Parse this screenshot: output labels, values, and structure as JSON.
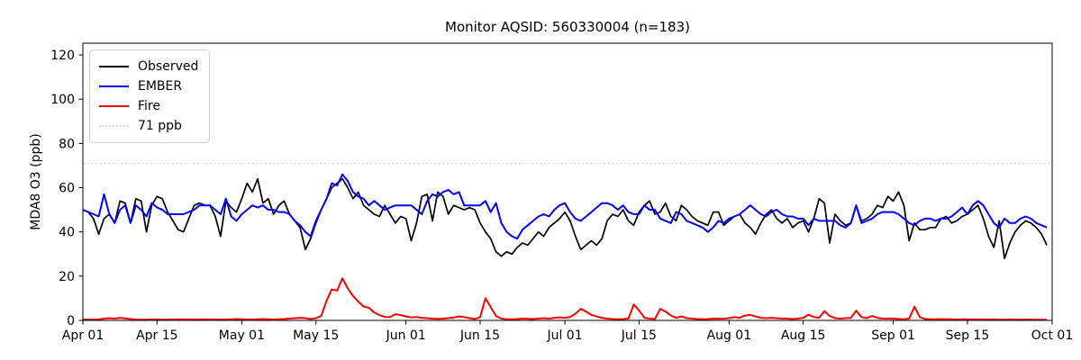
{
  "chart_data": {
    "type": "line",
    "title": "Monitor AQSID: 560330004 (n=183)",
    "xlabel": "",
    "ylabel": "MDA8 O3 (ppb)",
    "x_count": 183,
    "x_domain": 183,
    "ylim": [
      0,
      125.3
    ],
    "y_ticks": [
      0,
      20,
      40,
      60,
      80,
      100,
      120
    ],
    "x_ticks": [
      {
        "pos": 0,
        "label": "Apr 01"
      },
      {
        "pos": 14,
        "label": "Apr 15"
      },
      {
        "pos": 30,
        "label": "May 01"
      },
      {
        "pos": 44,
        "label": "May 15"
      },
      {
        "pos": 61,
        "label": "Jun 01"
      },
      {
        "pos": 75,
        "label": "Jun 15"
      },
      {
        "pos": 91,
        "label": "Jul 01"
      },
      {
        "pos": 105,
        "label": "Jul 15"
      },
      {
        "pos": 122,
        "label": "Aug 01"
      },
      {
        "pos": 136,
        "label": "Aug 15"
      },
      {
        "pos": 153,
        "label": "Sep 01"
      },
      {
        "pos": 167,
        "label": "Sep 15"
      },
      {
        "pos": 183,
        "label": "Oct 01"
      }
    ],
    "grid": false,
    "legend_position": "upper left",
    "threshold": {
      "value": 71,
      "label": "71 ppb",
      "color": "#d3d3d3",
      "style": "dotted"
    },
    "series": [
      {
        "name": "Observed",
        "color": "#000000",
        "width": 1.7,
        "values": [
          50,
          49,
          46,
          39,
          46,
          48,
          44,
          54,
          53,
          44,
          55,
          54,
          40,
          52,
          56,
          55,
          49,
          45,
          41,
          40,
          46,
          52,
          53,
          52,
          52,
          47,
          38,
          54,
          51,
          49,
          55,
          62,
          58,
          64,
          53,
          55,
          48,
          52,
          54,
          48,
          45,
          42,
          32,
          37,
          44,
          50,
          55,
          60,
          62,
          64,
          60,
          55,
          58,
          52,
          50,
          48,
          47,
          52,
          48,
          44,
          47,
          46,
          36,
          44,
          56,
          57,
          45,
          58,
          56,
          48,
          52,
          51,
          50,
          51,
          50,
          44,
          40,
          37,
          31,
          29,
          31,
          30,
          33,
          35,
          34,
          37,
          40,
          38,
          42,
          44,
          46,
          49,
          45,
          38,
          32,
          34,
          36,
          34,
          37,
          45,
          48,
          47,
          50,
          45,
          43,
          49,
          52,
          54,
          48,
          49,
          53,
          47,
          45,
          52,
          50,
          47,
          45,
          44,
          43,
          49,
          49,
          43,
          45,
          47,
          48,
          44,
          42,
          39,
          44,
          48,
          50,
          46,
          44,
          46,
          42,
          44,
          45,
          40,
          46,
          55,
          53,
          35,
          48,
          45,
          43,
          44,
          52,
          45,
          46,
          48,
          52,
          51,
          56,
          54,
          58,
          52,
          36,
          44,
          41,
          41,
          42,
          42,
          46,
          47,
          44,
          45,
          47,
          48,
          50,
          52,
          46,
          38,
          33,
          45,
          28,
          35,
          40,
          43,
          45,
          44,
          42,
          39,
          34
        ]
      },
      {
        "name": "EMBER",
        "color": "#0000ff",
        "width": 2.0,
        "values": [
          50,
          49,
          48,
          47,
          57,
          48,
          44,
          50,
          52,
          44,
          52,
          50,
          47,
          53,
          51,
          50,
          48,
          48,
          48,
          48,
          49,
          50,
          52,
          52,
          52,
          50,
          48,
          55,
          47,
          45,
          48,
          50,
          52,
          51,
          52,
          50,
          50,
          49,
          49,
          48,
          45,
          43,
          40,
          38,
          45,
          50,
          55,
          62,
          61,
          66,
          63,
          58,
          56,
          55,
          52,
          54,
          52,
          50,
          51,
          52,
          52,
          52,
          52,
          50,
          48,
          54,
          57,
          56,
          58,
          59,
          57,
          58,
          52,
          52,
          52,
          52,
          54,
          49,
          53,
          44,
          40,
          38,
          37,
          41,
          43,
          45,
          47,
          48,
          47,
          50,
          52,
          53,
          49,
          46,
          45,
          47,
          49,
          51,
          53,
          53,
          52,
          50,
          52,
          49,
          48,
          48,
          52,
          50,
          50,
          46,
          45,
          44,
          49,
          48,
          45,
          44,
          43,
          42,
          40,
          42,
          45,
          44,
          46,
          47,
          48,
          50,
          52,
          50,
          48,
          47,
          49,
          50,
          48,
          47,
          47,
          46,
          46,
          43,
          46,
          45,
          45,
          45,
          45,
          43,
          42,
          44,
          52,
          44,
          45,
          46,
          48,
          49,
          49,
          49,
          48,
          46,
          44,
          43,
          45,
          46,
          46,
          45,
          46,
          46,
          47,
          49,
          51,
          48,
          52,
          54,
          52,
          48,
          44,
          42,
          46,
          44,
          44,
          46,
          47,
          46,
          44,
          43,
          42
        ]
      },
      {
        "name": "Fire",
        "color": "#ff0000",
        "width": 2.0,
        "values": [
          0.3,
          0.4,
          0.3,
          0.4,
          0.8,
          1.0,
          0.8,
          1.2,
          0.9,
          0.6,
          0.4,
          0.3,
          0.3,
          0.4,
          0.4,
          0.3,
          0.3,
          0.4,
          0.5,
          0.4,
          0.4,
          0.3,
          0.4,
          0.5,
          0.4,
          0.4,
          0.3,
          0.4,
          0.5,
          0.6,
          0.5,
          0.4,
          0.4,
          0.5,
          0.6,
          0.5,
          0.4,
          0.5,
          0.6,
          0.8,
          1.0,
          1.2,
          1.0,
          0.6,
          1.0,
          2.0,
          9.0,
          14.0,
          13.5,
          19.0,
          14.5,
          11.0,
          8.5,
          6.3,
          5.7,
          3.6,
          2.4,
          1.6,
          1.5,
          2.8,
          2.4,
          1.8,
          1.4,
          1.5,
          1.2,
          1.0,
          0.8,
          0.7,
          0.8,
          1.0,
          1.3,
          1.8,
          1.5,
          1.0,
          0.6,
          1.5,
          10.0,
          6.0,
          2.0,
          0.8,
          0.5,
          0.5,
          0.6,
          0.8,
          0.7,
          0.6,
          0.8,
          1.0,
          0.8,
          1.2,
          1.4,
          1.2,
          1.5,
          3.0,
          5.2,
          4.0,
          2.5,
          1.8,
          1.2,
          0.8,
          0.6,
          0.5,
          0.6,
          0.8,
          7.2,
          4.5,
          1.2,
          0.8,
          0.6,
          5.2,
          4.0,
          2.2,
          1.2,
          1.8,
          1.0,
          0.8,
          0.6,
          0.5,
          0.6,
          0.8,
          0.7,
          0.8,
          1.0,
          1.5,
          1.2,
          2.2,
          2.5,
          1.8,
          1.2,
          1.0,
          1.2,
          1.0,
          0.8,
          0.8,
          0.6,
          0.8,
          1.2,
          2.6,
          1.5,
          1.2,
          4.2,
          2.0,
          1.0,
          0.8,
          1.0,
          1.2,
          4.4,
          1.5,
          1.0,
          2.0,
          1.2,
          0.8,
          0.8,
          0.8,
          0.6,
          0.5,
          0.8,
          6.2,
          1.5,
          0.6,
          0.5,
          0.5,
          0.6,
          0.5,
          0.5,
          0.4,
          0.5,
          0.5,
          0.4,
          0.4,
          0.4,
          0.3,
          0.4,
          0.3,
          0.3,
          0.4,
          0.3,
          0.3,
          0.4,
          0.3,
          0.3,
          0.3,
          0.3
        ]
      }
    ]
  },
  "legend": {
    "items": [
      {
        "label": "Observed",
        "color": "#000000",
        "style": "solid"
      },
      {
        "label": "EMBER",
        "color": "#0000ff",
        "style": "solid"
      },
      {
        "label": "Fire",
        "color": "#ff0000",
        "style": "solid"
      },
      {
        "label": "71 ppb",
        "color": "#d3d3d3",
        "style": "dotted"
      }
    ]
  }
}
